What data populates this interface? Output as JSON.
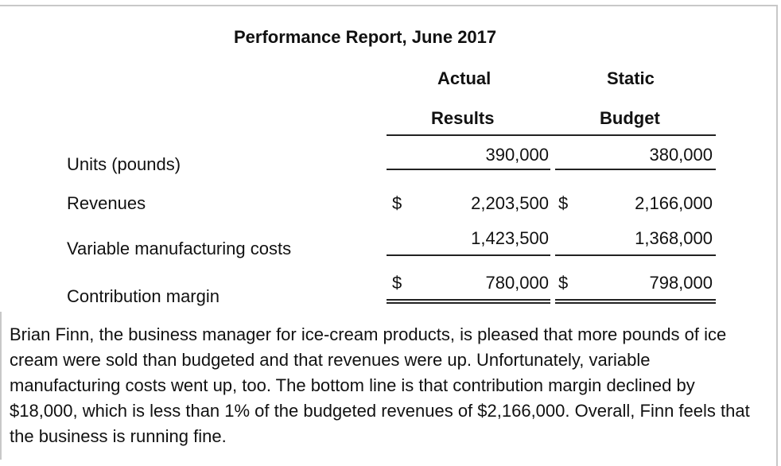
{
  "report": {
    "title": "Performance Report, June 2017",
    "columns": {
      "actual_line1": "Actual",
      "actual_line2": "Results",
      "static_line1": "Static",
      "static_line2": "Budget"
    },
    "rows": [
      {
        "label": "Units (pounds)",
        "actual_currency": "",
        "actual": "390,000",
        "static_currency": "",
        "static": "380,000"
      },
      {
        "label": "Revenues",
        "actual_currency": "$",
        "actual": "2,203,500",
        "static_currency": "$",
        "static": "2,166,000"
      },
      {
        "label": "Variable manufacturing costs",
        "actual_currency": "",
        "actual": "1,423,500",
        "static_currency": "",
        "static": "1,368,000"
      },
      {
        "label": "Contribution margin",
        "actual_currency": "$",
        "actual": "780,000",
        "static_currency": "$",
        "static": "798,000"
      }
    ]
  },
  "paragraph": "Brian Finn, the business manager for ice-cream products, is pleased that more pounds of ice cream were sold than budgeted and that revenues were up. Unfortunately, variable manufacturing costs went up, too. The bottom line is that contribution margin declined by $18,000, which is less than 1% of the budgeted revenues of $2,166,000. Overall, Finn feels that the business is running fine."
}
